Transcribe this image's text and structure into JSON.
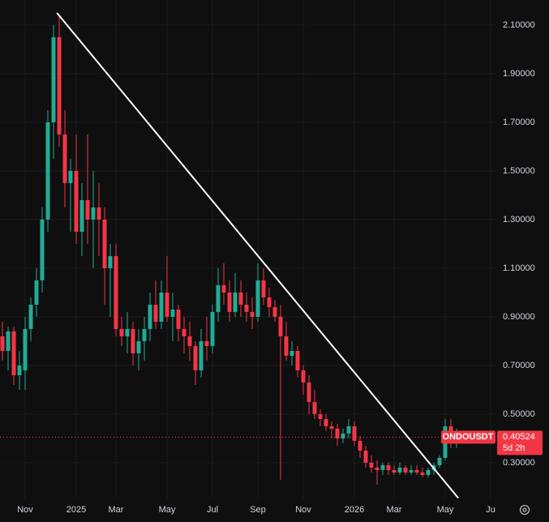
{
  "chart_data": {
    "type": "candlestick",
    "symbol": "ONDOUSDT",
    "countdown": "5d 2h",
    "last_price": 0.40524,
    "up_color": "#22ab94",
    "down_color": "#f23645",
    "grid": true,
    "categories": [
      null,
      null,
      null,
      null,
      "Nov",
      null,
      null,
      null,
      null,
      null,
      null,
      null,
      null,
      "2025",
      null,
      null,
      null,
      null,
      null,
      null,
      "Mar",
      null,
      null,
      null,
      null,
      null,
      null,
      null,
      null,
      "May",
      null,
      null,
      null,
      null,
      null,
      null,
      null,
      "Jul",
      null,
      null,
      null,
      null,
      null,
      null,
      null,
      "Sep",
      null,
      null,
      null,
      null,
      null,
      null,
      null,
      "Nov",
      null,
      null,
      null,
      null,
      null,
      null,
      null,
      null,
      "2026",
      null,
      null,
      null,
      null,
      null,
      null,
      "Mar",
      null,
      null,
      null,
      null,
      null,
      null,
      null,
      null,
      "May",
      null,
      null,
      null,
      null,
      null,
      null,
      null,
      "Ju"
    ],
    "open": [
      0.82,
      0.76,
      0.84,
      0.66,
      0.68,
      0.85,
      0.95,
      1.05,
      1.3,
      1.7,
      2.05,
      1.65,
      1.45,
      1.5,
      1.25,
      1.38,
      1.3,
      1.35,
      1.3,
      1.1,
      1.15,
      0.85,
      0.82,
      0.85,
      0.75,
      0.8,
      0.85,
      0.95,
      0.88,
      1.0,
      0.9,
      0.93,
      0.85,
      0.82,
      0.78,
      0.68,
      0.8,
      0.78,
      0.92,
      1.03,
      1.0,
      0.92,
      1.0,
      0.95,
      0.92,
      0.9,
      1.05,
      0.98,
      0.94,
      0.9,
      0.82,
      0.74,
      0.76,
      0.68,
      0.63,
      0.55,
      0.5,
      0.48,
      0.45,
      0.44,
      0.4,
      0.42,
      0.45,
      0.39,
      0.35,
      0.3,
      0.28,
      0.27,
      0.29,
      0.27,
      0.26,
      0.28,
      0.26,
      0.27,
      0.26,
      0.25,
      0.27,
      0.29,
      0.32,
      0.45,
      0.38,
      null,
      null,
      null,
      null,
      null,
      null
    ],
    "high": [
      0.88,
      0.86,
      0.86,
      0.76,
      0.9,
      0.98,
      1.1,
      1.35,
      1.75,
      2.1,
      2.14,
      1.75,
      1.55,
      1.65,
      1.45,
      1.65,
      1.5,
      1.45,
      1.35,
      1.2,
      1.2,
      0.9,
      0.92,
      0.88,
      0.85,
      0.9,
      1.0,
      1.05,
      1.05,
      1.15,
      1.0,
      0.95,
      0.9,
      0.88,
      0.8,
      0.85,
      0.9,
      0.95,
      1.1,
      1.12,
      1.05,
      1.08,
      1.05,
      1.0,
      0.98,
      1.12,
      1.1,
      1.02,
      0.97,
      0.95,
      0.88,
      0.8,
      0.78,
      0.7,
      0.66,
      0.6,
      0.52,
      0.5,
      0.47,
      0.46,
      0.44,
      0.48,
      0.47,
      0.41,
      0.37,
      0.33,
      0.31,
      0.3,
      0.3,
      0.29,
      0.3,
      0.29,
      0.29,
      0.29,
      0.28,
      0.28,
      0.3,
      0.33,
      0.48,
      0.48,
      0.44,
      null,
      null,
      null,
      null,
      null,
      null
    ],
    "low": [
      0.72,
      0.68,
      0.62,
      0.6,
      0.6,
      0.8,
      0.9,
      1.0,
      1.25,
      1.55,
      1.6,
      1.35,
      1.25,
      1.2,
      1.15,
      1.2,
      1.1,
      1.15,
      0.95,
      0.9,
      0.82,
      0.78,
      0.75,
      0.7,
      0.68,
      0.72,
      0.8,
      0.85,
      0.85,
      0.88,
      0.8,
      0.8,
      0.75,
      0.72,
      0.62,
      0.65,
      0.72,
      0.75,
      0.88,
      0.95,
      0.88,
      0.9,
      0.9,
      0.88,
      0.85,
      0.88,
      0.95,
      0.9,
      0.88,
      0.23,
      0.72,
      0.7,
      0.65,
      0.58,
      0.5,
      0.48,
      0.45,
      0.43,
      0.4,
      0.37,
      0.38,
      0.4,
      0.37,
      0.32,
      0.28,
      0.26,
      0.21,
      0.25,
      0.25,
      0.25,
      0.25,
      0.25,
      0.25,
      0.25,
      0.24,
      0.24,
      0.25,
      0.28,
      0.31,
      0.36,
      0.36,
      null,
      null,
      null,
      null,
      null,
      null
    ],
    "close": [
      0.76,
      0.84,
      0.66,
      0.7,
      0.85,
      0.95,
      1.05,
      1.3,
      1.7,
      2.05,
      1.65,
      1.45,
      1.5,
      1.25,
      1.38,
      1.3,
      1.35,
      1.3,
      1.1,
      1.15,
      0.85,
      0.82,
      0.85,
      0.75,
      0.8,
      0.85,
      0.95,
      0.88,
      1.0,
      0.9,
      0.93,
      0.85,
      0.82,
      0.78,
      0.68,
      0.8,
      0.78,
      0.92,
      1.03,
      1.0,
      0.92,
      1.0,
      0.95,
      0.92,
      0.9,
      1.05,
      0.98,
      0.94,
      0.9,
      0.82,
      0.74,
      0.76,
      0.68,
      0.63,
      0.55,
      0.5,
      0.48,
      0.45,
      0.44,
      0.4,
      0.42,
      0.45,
      0.39,
      0.35,
      0.3,
      0.28,
      0.27,
      0.29,
      0.27,
      0.26,
      0.28,
      0.26,
      0.27,
      0.26,
      0.25,
      0.27,
      0.29,
      0.32,
      0.45,
      0.38,
      0.40524,
      null,
      null,
      null,
      null,
      null,
      null
    ],
    "trendline": {
      "start": [
        9.6,
        2.15
      ],
      "end": [
        80.3,
        0.155
      ],
      "color": "#ffffff"
    },
    "ylim": [
      0.153,
      2.203
    ],
    "yticks": [
      {
        "value": 0.3,
        "label": "0.30000"
      },
      {
        "value": 0.5,
        "label": "0.50000"
      },
      {
        "value": 0.7,
        "label": "0.70000"
      },
      {
        "value": 0.9,
        "label": "0.90000"
      },
      {
        "value": 1.1,
        "label": "1.10000"
      },
      {
        "value": 1.3,
        "label": "1.30000"
      },
      {
        "value": 1.5,
        "label": "1.50000"
      },
      {
        "value": 1.7,
        "label": "1.70000"
      },
      {
        "value": 1.9,
        "label": "1.90000"
      },
      {
        "value": 2.1,
        "label": "2.10000"
      }
    ]
  }
}
